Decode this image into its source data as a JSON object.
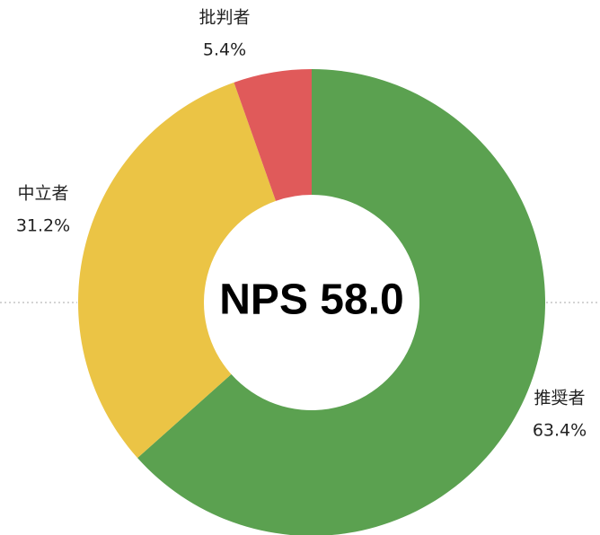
{
  "chart_data": {
    "type": "donut",
    "categories": [
      "推奨者",
      "中立者",
      "批判者"
    ],
    "values": [
      63.4,
      31.2,
      5.4
    ],
    "value_labels": [
      "63.4%",
      "31.2%",
      "5.4%"
    ],
    "colors": [
      "#5ba150",
      "#ebc445",
      "#e05a5a"
    ],
    "center_label": "NPS 58.0"
  }
}
